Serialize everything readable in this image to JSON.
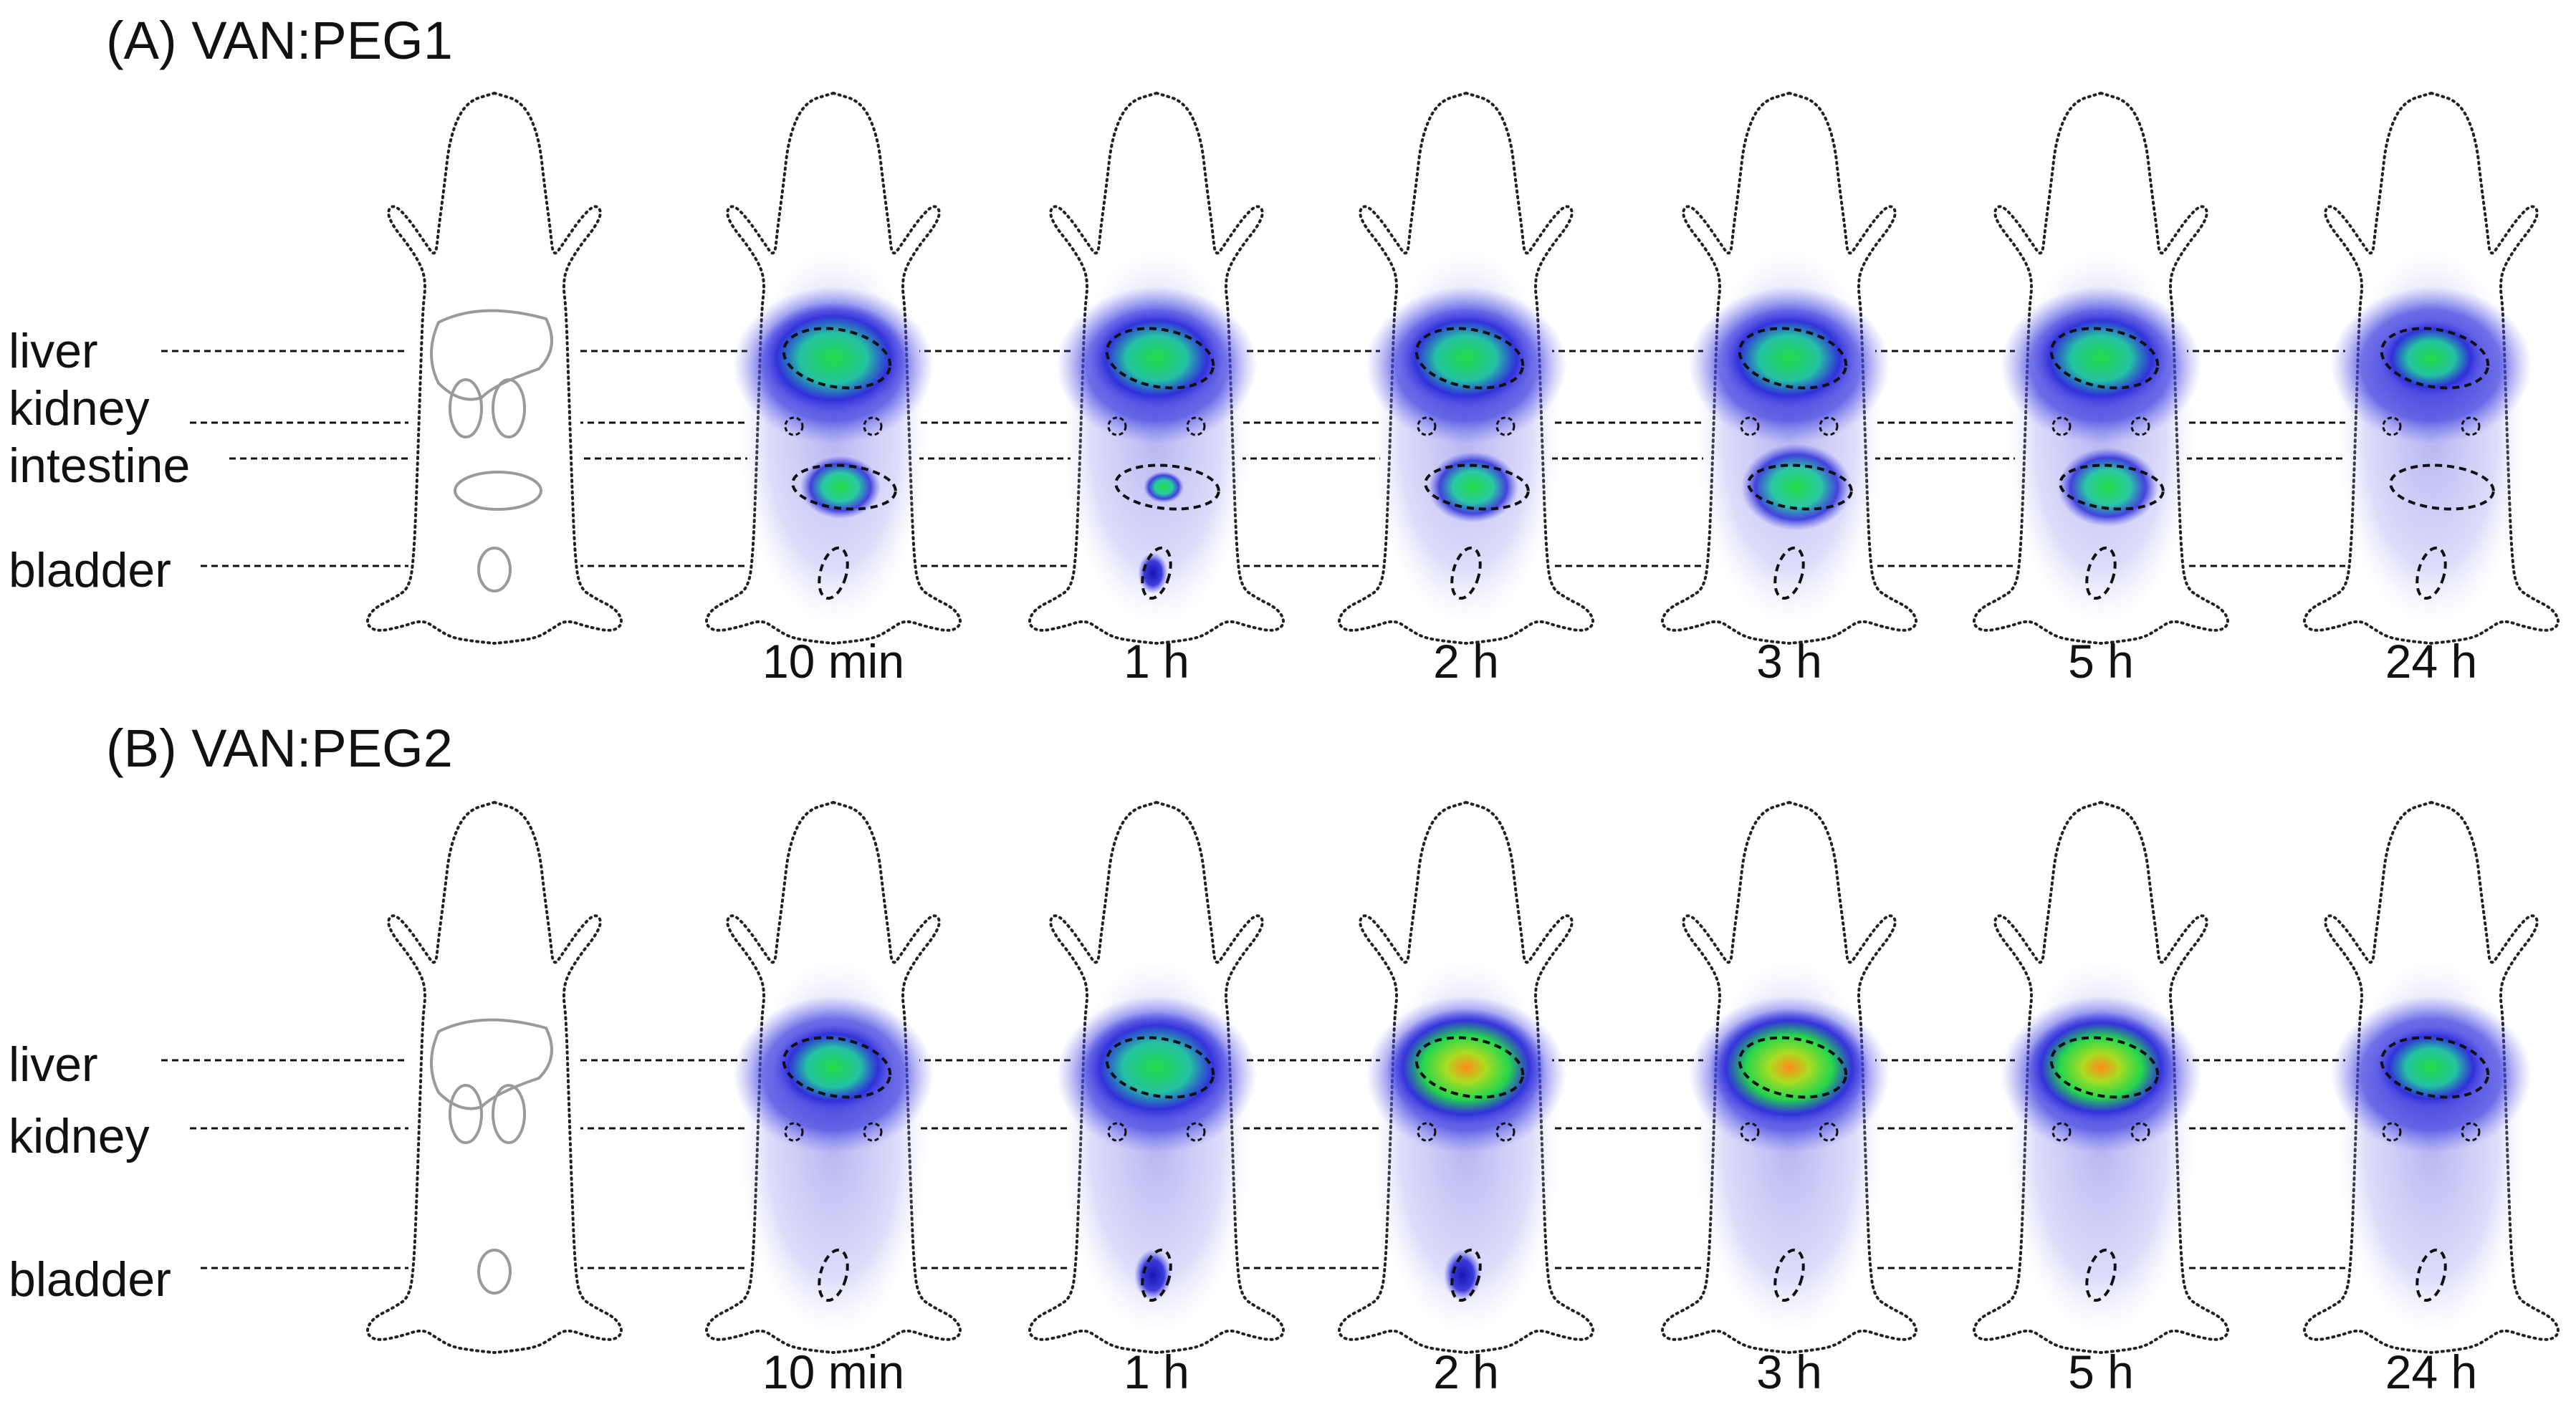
{
  "panels": [
    {
      "title": "(A) VAN:PEG1",
      "organs": [
        "liver",
        "kidney",
        "intestine",
        "bladder"
      ],
      "timepoints": [
        "10 min",
        "1 h",
        "2 h",
        "3 h",
        "5 h",
        "24 h"
      ]
    },
    {
      "title": "(B) VAN:PEG2",
      "organs": [
        "liver",
        "kidney",
        "bladder"
      ],
      "timepoints": [
        "10 min",
        "1 h",
        "2 h",
        "3 h",
        "5 h",
        "24 h"
      ]
    }
  ],
  "colors": {
    "background": "#ffffff",
    "outline": "#222222",
    "schematic_organ": "#9a9a9a",
    "signal_low": "#2a2ad8",
    "signal_mid": "#1aa7d8",
    "signal_high": "#22dd44",
    "signal_peak": "#ff8a1a"
  }
}
